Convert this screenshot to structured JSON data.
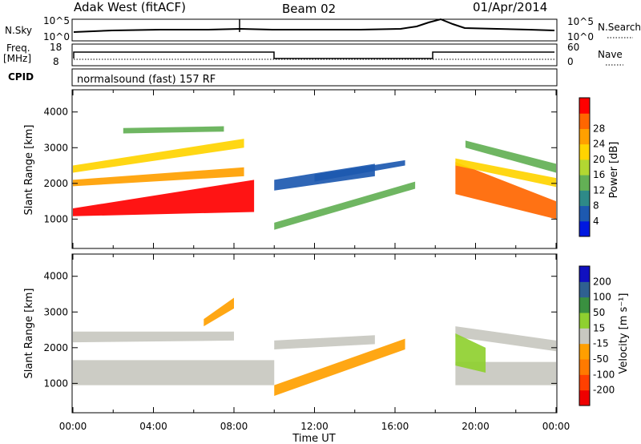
{
  "header": {
    "station": "Adak West (fitACF)",
    "beam": "Beam 02",
    "date": "01/Apr/2014"
  },
  "summary": {
    "nsky_label": "N.Sky",
    "nsky_ticks": [
      "10^5",
      "10^0"
    ],
    "nsearch_label": "N.Search",
    "nsearch_ticks": [
      "10^5",
      "10^0"
    ],
    "freq_label": "Freq.",
    "freq_unit": "[MHz]",
    "freq_ticks": [
      "18",
      "8"
    ],
    "nave_label": "Nave",
    "nave_ticks": [
      "60",
      "0"
    ],
    "cpid_label": "CPID",
    "cpid_text": "normalsound (fast) 157 RF"
  },
  "colors": {
    "power_scale": [
      "#0018e0",
      "#1d59b0",
      "#2e8a88",
      "#63b055",
      "#b2d832",
      "#ffd400",
      "#ffa000",
      "#ff6600",
      "#ff0000"
    ],
    "velocity_scale": [
      "#ee0000",
      "#ff4000",
      "#ff7a00",
      "#ff9f00",
      "#c8c8c0",
      "#8fd030",
      "#3a9040",
      "#2f6090",
      "#1010c0"
    ]
  },
  "chart_data": [
    {
      "type": "heatmap",
      "panel": "power",
      "ylabel": "Slant Range [km]",
      "yticks": [
        "1000",
        "2000",
        "3000",
        "4000"
      ],
      "ylim": [
        200,
        4600
      ],
      "xlim_hours": [
        0,
        24
      ],
      "colorbar_label": "Power [dB]",
      "colorbar_ticks": [
        "4",
        "8",
        "12",
        "16",
        "20",
        "24",
        "28"
      ],
      "colorbar_range": [
        0,
        30
      ],
      "bands": [
        {
          "t": [
            0.0,
            9.0
          ],
          "r0": [
            1080,
            1200
          ],
          "r1": [
            1300,
            2100
          ],
          "v": 27
        },
        {
          "t": [
            0.0,
            8.5
          ],
          "r0": [
            1920,
            2200
          ],
          "r1": [
            2100,
            2450
          ],
          "v": 22
        },
        {
          "t": [
            0.0,
            8.5
          ],
          "r0": [
            2300,
            3000
          ],
          "r1": [
            2500,
            3250
          ],
          "v": 18
        },
        {
          "t": [
            2.5,
            7.5
          ],
          "r0": [
            3400,
            3450
          ],
          "r1": [
            3550,
            3600
          ],
          "v": 10
        },
        {
          "t": [
            10.0,
            15.0
          ],
          "r0": [
            1800,
            2200
          ],
          "r1": [
            2100,
            2550
          ],
          "v": 6
        },
        {
          "t": [
            10.0,
            17.0
          ],
          "r0": [
            700,
            1850
          ],
          "r1": [
            900,
            2050
          ],
          "v": 12
        },
        {
          "t": [
            12.0,
            16.5
          ],
          "r0": [
            2050,
            2500
          ],
          "r1": [
            2250,
            2650
          ],
          "v": 5
        },
        {
          "t": [
            19.0,
            24.0
          ],
          "r0": [
            1700,
            1000
          ],
          "r1": [
            2600,
            1500
          ],
          "v": 25
        },
        {
          "t": [
            19.0,
            24.0
          ],
          "r0": [
            2500,
            1900
          ],
          "r1": [
            2700,
            2150
          ],
          "v": 18
        },
        {
          "t": [
            19.5,
            24.0
          ],
          "r0": [
            3000,
            2300
          ],
          "r1": [
            3200,
            2550
          ],
          "v": 10
        }
      ]
    },
    {
      "type": "heatmap",
      "panel": "velocity",
      "ylabel": "Slant Range [km]",
      "yticks": [
        "1000",
        "2000",
        "3000",
        "4000"
      ],
      "ylim": [
        200,
        4600
      ],
      "xlim_hours": [
        0,
        24
      ],
      "xticks": [
        "00:00",
        "04:00",
        "08:00",
        "12:00",
        "16:00",
        "20:00",
        "00:00"
      ],
      "xlabel": "Time UT",
      "colorbar_label": "Velocity [m s⁻¹]",
      "colorbar_ticks": [
        "-200",
        "-100",
        "-50",
        "-15",
        "15",
        "50",
        "100",
        "200"
      ],
      "colorbar_range": [
        -250,
        250
      ],
      "bands": [
        {
          "t": [
            0.0,
            10.0
          ],
          "r0": [
            950,
            950
          ],
          "r1": [
            1650,
            1650
          ],
          "v": 0
        },
        {
          "t": [
            0.0,
            8.0
          ],
          "r0": [
            2150,
            2200
          ],
          "r1": [
            2450,
            2450
          ],
          "v": 0
        },
        {
          "t": [
            6.5,
            8.0
          ],
          "r0": [
            2600,
            3100
          ],
          "r1": [
            2800,
            3400
          ],
          "v": -55
        },
        {
          "t": [
            10.0,
            16.5
          ],
          "r0": [
            650,
            1950
          ],
          "r1": [
            950,
            2250
          ],
          "v": -70
        },
        {
          "t": [
            10.0,
            15.0
          ],
          "r0": [
            1950,
            2100
          ],
          "r1": [
            2200,
            2350
          ],
          "v": 0
        },
        {
          "t": [
            19.0,
            24.0
          ],
          "r0": [
            950,
            950
          ],
          "r1": [
            1600,
            1600
          ],
          "v": 0
        },
        {
          "t": [
            19.0,
            24.0
          ],
          "r0": [
            2300,
            1900
          ],
          "r1": [
            2600,
            2200
          ],
          "v": 0
        },
        {
          "t": [
            19.0,
            20.5
          ],
          "r0": [
            1500,
            1300
          ],
          "r1": [
            2400,
            2000
          ],
          "v": 30
        }
      ]
    }
  ]
}
